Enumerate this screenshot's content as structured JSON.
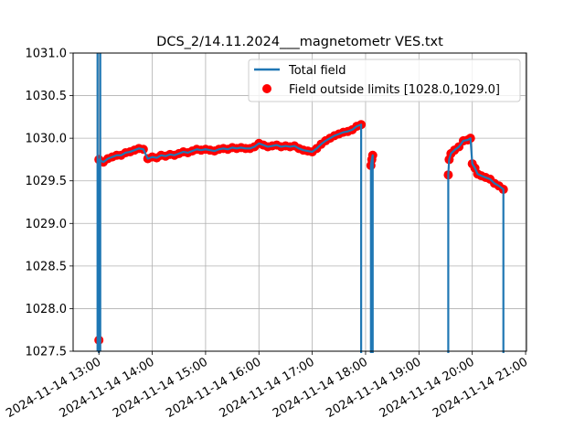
{
  "chart_data": {
    "type": "line",
    "title": "DCS_2/14.11.2024___magnetometr VES.txt",
    "xlabel": "",
    "ylabel": "",
    "xlim": [
      "2024-11-14 12:31",
      "2024-11-14 21:01"
    ],
    "ylim": [
      1027.5,
      1031.0
    ],
    "grid": true,
    "legend_placement": "upper-right",
    "x_ticks": [
      "2024-11-14 13:00",
      "2024-11-14 14:00",
      "2024-11-14 15:00",
      "2024-11-14 16:00",
      "2024-11-14 17:00",
      "2024-11-14 18:00",
      "2024-11-14 19:00",
      "2024-11-14 20:00",
      "2024-11-14 21:00"
    ],
    "y_ticks": [
      "1027.5",
      "1028.0",
      "1028.5",
      "1029.0",
      "1029.5",
      "1030.0",
      "1030.5",
      "1031.0"
    ],
    "date": "2024-11-14",
    "series": [
      {
        "name": "Total field",
        "kind": "line",
        "color": "#1f77b4",
        "note_below_range": "line drops below the plotted range between segments",
        "segments": [
          [
            [
              "13:00",
              1029.75
            ],
            [
              "13:05",
              1029.72
            ],
            [
              "13:10",
              1029.76
            ],
            [
              "13:15",
              1029.78
            ],
            [
              "13:20",
              1029.8
            ],
            [
              "13:25",
              1029.8
            ],
            [
              "13:30",
              1029.83
            ],
            [
              "13:35",
              1029.84
            ],
            [
              "13:40",
              1029.86
            ],
            [
              "13:45",
              1029.88
            ],
            [
              "13:50",
              1029.87
            ],
            [
              "13:55",
              1029.76
            ],
            [
              "14:00",
              1029.78
            ],
            [
              "14:05",
              1029.77
            ],
            [
              "14:10",
              1029.8
            ],
            [
              "14:15",
              1029.79
            ],
            [
              "14:20",
              1029.81
            ],
            [
              "14:25",
              1029.8
            ],
            [
              "14:30",
              1029.82
            ],
            [
              "14:35",
              1029.84
            ],
            [
              "14:40",
              1029.83
            ],
            [
              "14:45",
              1029.85
            ],
            [
              "14:50",
              1029.87
            ],
            [
              "14:55",
              1029.86
            ],
            [
              "15:00",
              1029.87
            ],
            [
              "15:05",
              1029.86
            ],
            [
              "15:10",
              1029.85
            ],
            [
              "15:15",
              1029.87
            ],
            [
              "15:20",
              1029.88
            ],
            [
              "15:25",
              1029.87
            ],
            [
              "15:30",
              1029.89
            ],
            [
              "15:35",
              1029.88
            ],
            [
              "15:40",
              1029.89
            ],
            [
              "15:45",
              1029.88
            ],
            [
              "15:50",
              1029.88
            ],
            [
              "15:55",
              1029.9
            ],
            [
              "16:00",
              1029.94
            ],
            [
              "16:05",
              1029.92
            ],
            [
              "16:10",
              1029.9
            ],
            [
              "16:15",
              1029.91
            ],
            [
              "16:20",
              1029.92
            ],
            [
              "16:25",
              1029.9
            ],
            [
              "16:30",
              1029.91
            ],
            [
              "16:35",
              1029.9
            ],
            [
              "16:40",
              1029.91
            ],
            [
              "16:45",
              1029.88
            ],
            [
              "16:50",
              1029.86
            ],
            [
              "16:55",
              1029.85
            ],
            [
              "17:00",
              1029.84
            ],
            [
              "17:05",
              1029.88
            ],
            [
              "17:10",
              1029.93
            ],
            [
              "17:15",
              1029.97
            ],
            [
              "17:20",
              1030.0
            ],
            [
              "17:25",
              1030.03
            ],
            [
              "17:30",
              1030.05
            ],
            [
              "17:35",
              1030.07
            ],
            [
              "17:40",
              1030.08
            ],
            [
              "17:45",
              1030.1
            ],
            [
              "17:50",
              1030.14
            ],
            [
              "17:55",
              1030.16
            ]
          ],
          [
            [
              "18:06",
              1029.68
            ],
            [
              "18:07",
              1029.75
            ],
            [
              "18:08",
              1029.8
            ]
          ],
          [
            [
              "19:33",
              1029.57
            ],
            [
              "19:34",
              1029.75
            ],
            [
              "19:36",
              1029.82
            ],
            [
              "19:40",
              1029.86
            ],
            [
              "19:45",
              1029.9
            ],
            [
              "19:50",
              1029.97
            ],
            [
              "19:55",
              1029.98
            ],
            [
              "19:58",
              1030.0
            ],
            [
              "20:00",
              1029.7
            ],
            [
              "20:03",
              1029.65
            ],
            [
              "20:06",
              1029.58
            ],
            [
              "20:10",
              1029.56
            ],
            [
              "20:15",
              1029.54
            ],
            [
              "20:20",
              1029.52
            ],
            [
              "20:25",
              1029.47
            ],
            [
              "20:30",
              1029.44
            ],
            [
              "20:35",
              1029.4
            ]
          ]
        ]
      },
      {
        "name": "Field outside limits [1028.0,1029.0]",
        "kind": "scatter",
        "color": "#ff0000",
        "extra_points": [
          [
            "13:00",
            1027.63
          ]
        ]
      }
    ]
  }
}
